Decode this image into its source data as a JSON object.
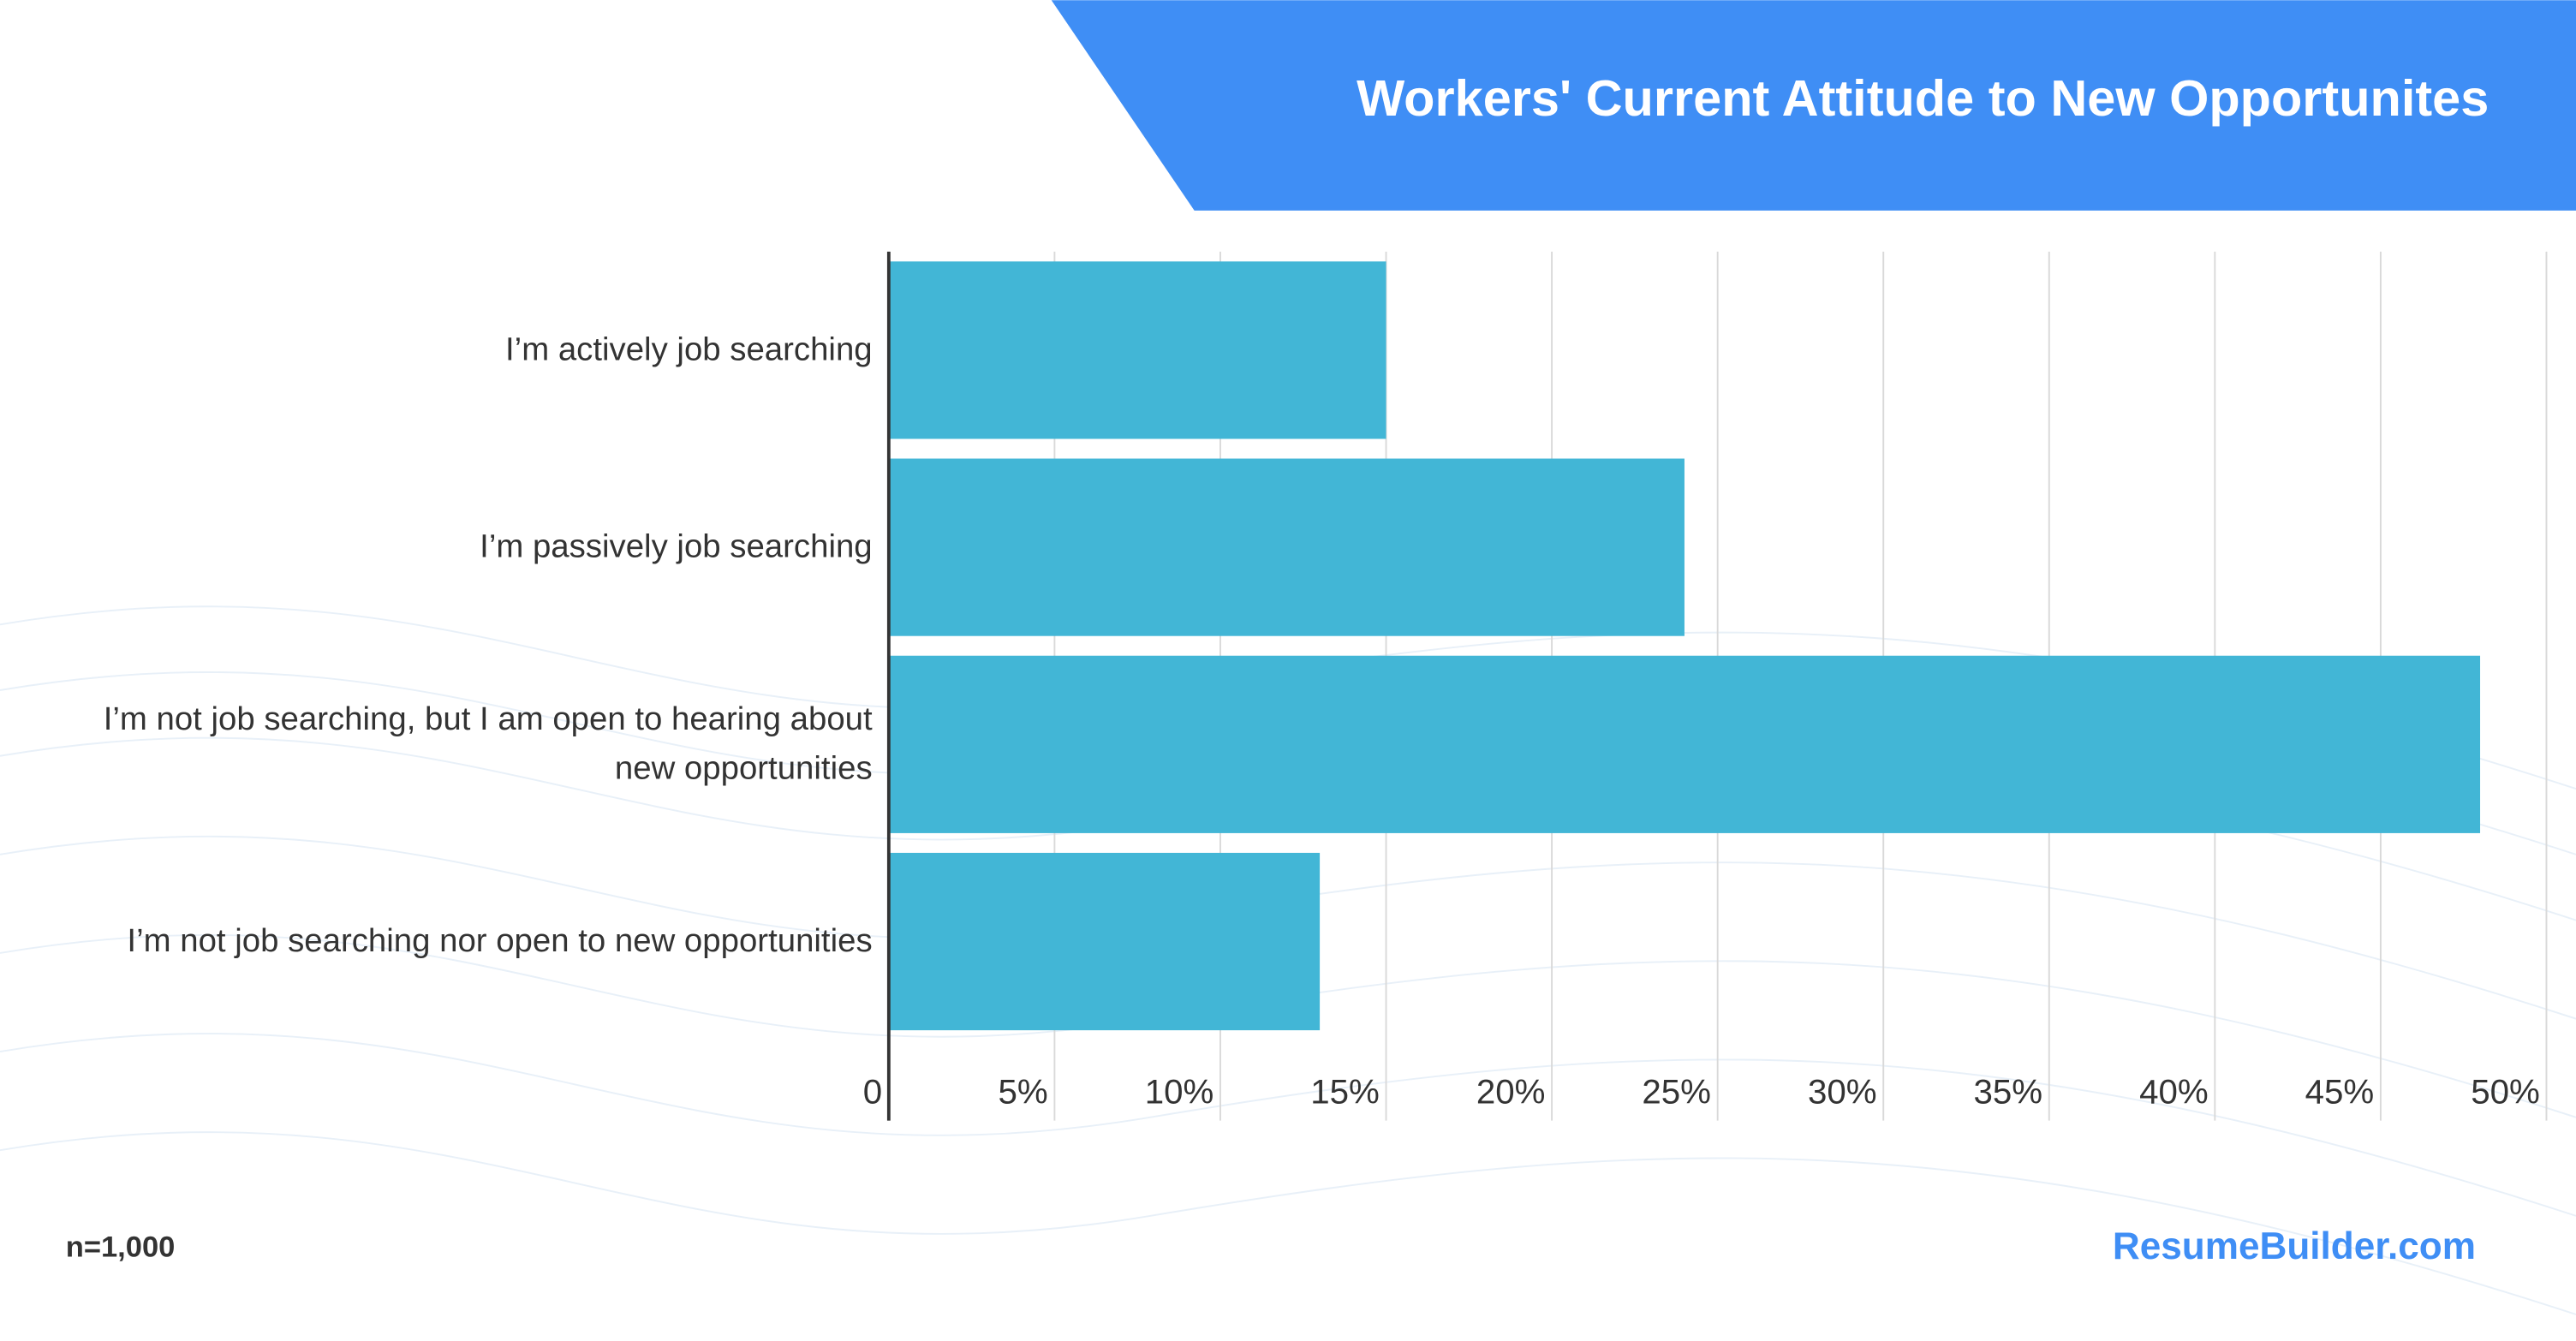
{
  "chart_data": {
    "type": "bar",
    "orientation": "horizontal",
    "title": "Workers' Current Attitude to New Opportunites",
    "categories": [
      "I’m actively job searching",
      "I’m passively job searching",
      "I’m not job searching, but I am open to hearing about new opportunities",
      "I’m not job searching nor open to new opportunities"
    ],
    "values": [
      15,
      24,
      48,
      13
    ],
    "color": "#42b6d6",
    "xlim": [
      0,
      50
    ],
    "xticks": [
      0,
      {
        "value": 5,
        "label": "5%"
      },
      {
        "value": 10,
        "label": "10%"
      },
      {
        "value": 15,
        "label": "15%"
      },
      {
        "value": 20,
        "label": "20%"
      },
      {
        "value": 25,
        "label": "25%"
      },
      {
        "value": 30,
        "label": "30%"
      },
      {
        "value": 35,
        "label": "35%"
      },
      {
        "value": 40,
        "label": "40%"
      },
      {
        "value": 45,
        "label": "45%"
      },
      {
        "value": 50,
        "label": "50%"
      }
    ],
    "grid": true,
    "note": "n=1,000",
    "source": "ResumeBuilder.com"
  }
}
